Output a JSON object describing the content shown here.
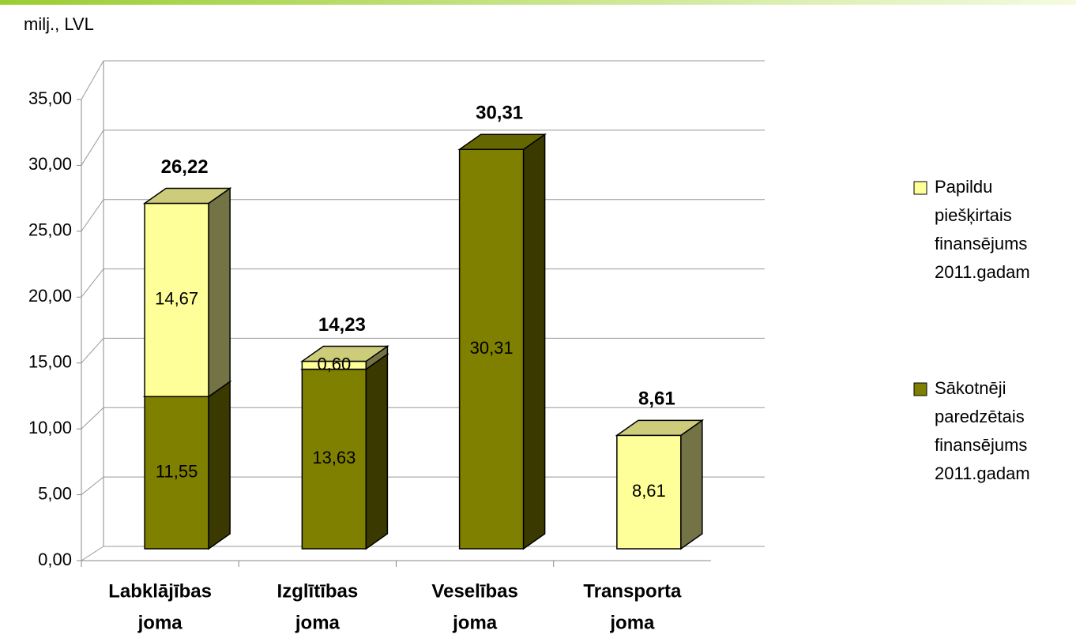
{
  "chart_data": {
    "type": "bar3d_stacked",
    "y_axis_label": "milj., LVL",
    "categories": [
      "Labklājības joma",
      "Izglītības joma",
      "Veselības joma",
      "Transporta joma"
    ],
    "series": [
      {
        "name": "Sākotnēji paredzētais finansējums 2011.gadam",
        "color": "#808000",
        "values": [
          11.55,
          13.63,
          30.31,
          null
        ],
        "value_labels": [
          "11,55",
          "13,63",
          "30,31",
          null
        ]
      },
      {
        "name": "Papildu piešķirtais finansējums 2011.gadam",
        "color": "#ffff99",
        "values": [
          14.67,
          0.6,
          null,
          8.61
        ],
        "value_labels": [
          "14,67",
          "0,60",
          null,
          "8,61"
        ]
      }
    ],
    "totals": {
      "values": [
        26.22,
        14.23,
        30.31,
        8.61
      ],
      "value_labels": [
        "26,22",
        "14,23",
        "30,31",
        "8,61"
      ]
    },
    "ylim": [
      0,
      35
    ],
    "yticks": [
      {
        "value": 0,
        "label": "0,00"
      },
      {
        "value": 5,
        "label": "5,00"
      },
      {
        "value": 10,
        "label": "10,00"
      },
      {
        "value": 15,
        "label": "15,00"
      },
      {
        "value": 20,
        "label": "20,00"
      },
      {
        "value": 25,
        "label": "25,00"
      },
      {
        "value": 30,
        "label": "30,00"
      },
      {
        "value": 35,
        "label": "35,00"
      }
    ],
    "grid": true,
    "legend": "right"
  }
}
